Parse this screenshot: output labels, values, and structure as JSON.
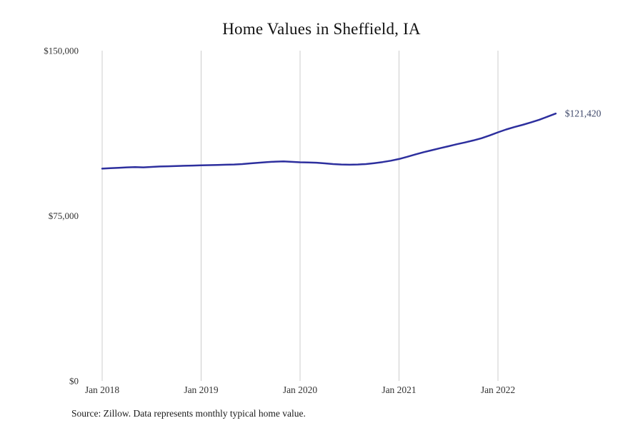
{
  "title": "Home Values in Sheffield, IA",
  "source": "Source: Zillow. Data represents monthly typical home value.",
  "colors": {
    "line": "#2d2f9e",
    "grid": "#cccccc",
    "tick_text": "#333333",
    "end_label_text": "#3c4668"
  },
  "chart_data": {
    "type": "line",
    "title": "Home Values in Sheffield, IA",
    "xlabel": "",
    "ylabel": "",
    "ylim": [
      0,
      150000
    ],
    "grid": "vertical-only",
    "legend": "none",
    "end_label": "$121,420",
    "end_value": 121420,
    "y_ticks": [
      {
        "label": "$0",
        "value": 0
      },
      {
        "label": "$75,000",
        "value": 75000
      },
      {
        "label": "$150,000",
        "value": 150000
      }
    ],
    "x_ticks": [
      {
        "label": "Jan 2018",
        "month_index": 0
      },
      {
        "label": "Jan 2019",
        "month_index": 12
      },
      {
        "label": "Jan 2020",
        "month_index": 24
      },
      {
        "label": "Jan 2021",
        "month_index": 36
      },
      {
        "label": "Jan 2022",
        "month_index": 48
      }
    ],
    "x": [
      "2018-01",
      "2018-02",
      "2018-03",
      "2018-04",
      "2018-05",
      "2018-06",
      "2018-07",
      "2018-08",
      "2018-09",
      "2018-10",
      "2018-11",
      "2018-12",
      "2019-01",
      "2019-02",
      "2019-03",
      "2019-04",
      "2019-05",
      "2019-06",
      "2019-07",
      "2019-08",
      "2019-09",
      "2019-10",
      "2019-11",
      "2019-12",
      "2020-01",
      "2020-02",
      "2020-03",
      "2020-04",
      "2020-05",
      "2020-06",
      "2020-07",
      "2020-08",
      "2020-09",
      "2020-10",
      "2020-11",
      "2020-12",
      "2021-01",
      "2021-02",
      "2021-03",
      "2021-04",
      "2021-05",
      "2021-06",
      "2021-07",
      "2021-08",
      "2021-09",
      "2021-10",
      "2021-11",
      "2021-12",
      "2022-01",
      "2022-02",
      "2022-03",
      "2022-04",
      "2022-05",
      "2022-06",
      "2022-07",
      "2022-08"
    ],
    "values": [
      96400,
      96600,
      96800,
      97000,
      97100,
      97000,
      97200,
      97400,
      97500,
      97600,
      97700,
      97800,
      97900,
      98000,
      98100,
      98200,
      98300,
      98500,
      98800,
      99100,
      99400,
      99600,
      99700,
      99500,
      99300,
      99200,
      99100,
      98800,
      98500,
      98300,
      98200,
      98300,
      98500,
      98900,
      99400,
      100000,
      100800,
      101800,
      102900,
      103900,
      104800,
      105700,
      106600,
      107500,
      108300,
      109200,
      110200,
      111500,
      112900,
      114200,
      115300,
      116300,
      117400,
      118600,
      120000,
      121420
    ]
  }
}
